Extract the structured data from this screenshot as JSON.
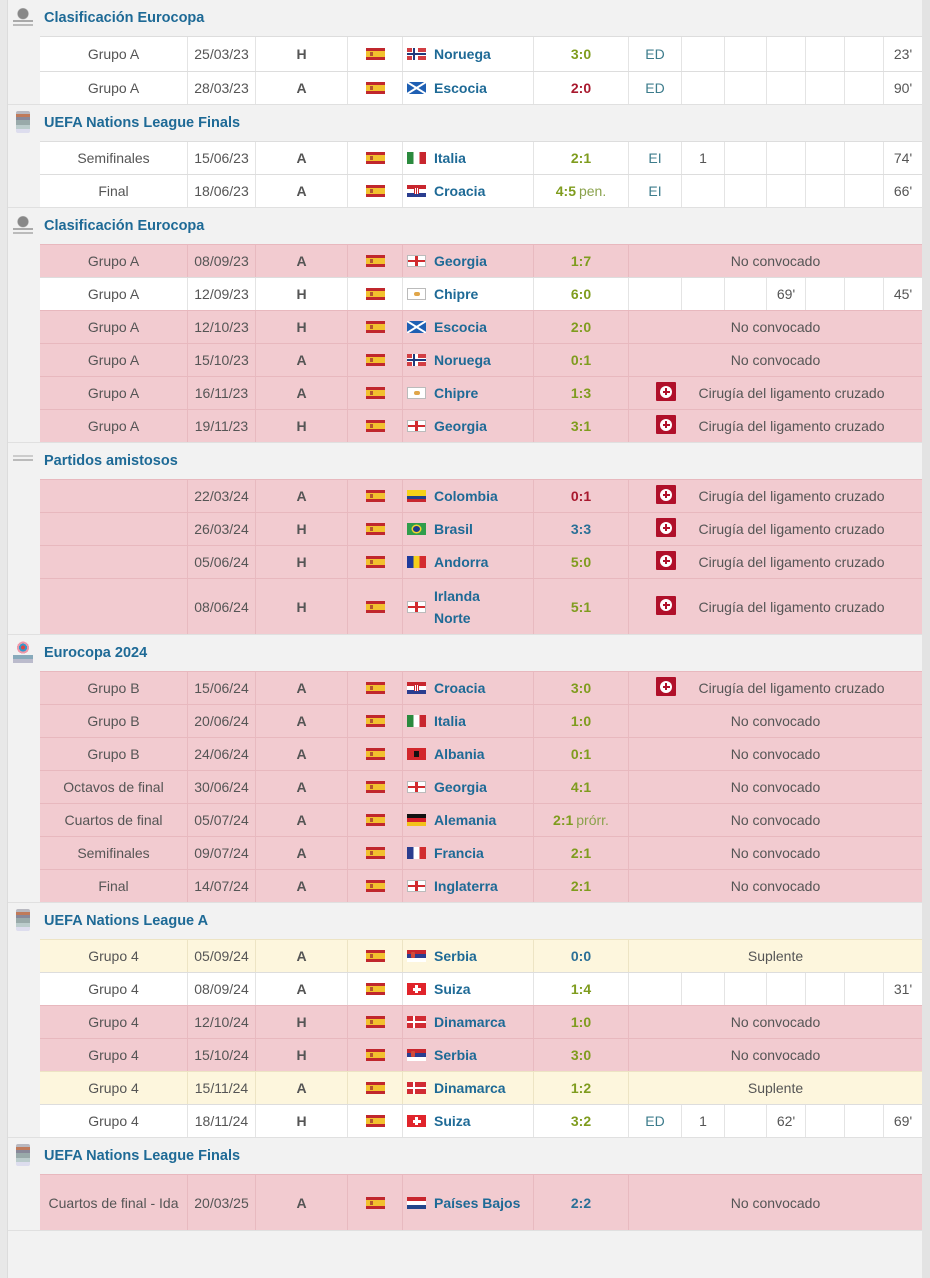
{
  "sections": [
    {
      "title": "Clasificación Eurocopa",
      "icon": "euro-qualifiers-logo-icon",
      "rows": [
        {
          "type": "played",
          "comp": "Grupo A",
          "date": "25/03/23",
          "ha": "H",
          "own_flag": "spain",
          "opp_flag": "norway",
          "opponent": "Noruega",
          "score": "3:0",
          "result": "win",
          "suffix": "",
          "stats": [
            "ED",
            "",
            "",
            "",
            "",
            "",
            "23'"
          ]
        },
        {
          "type": "played",
          "comp": "Grupo A",
          "date": "28/03/23",
          "ha": "A",
          "own_flag": "spain",
          "opp_flag": "scotland",
          "opponent": "Escocia",
          "score": "2:0",
          "result": "loss",
          "suffix": "",
          "stats": [
            "ED",
            "",
            "",
            "",
            "",
            "",
            "90'"
          ]
        }
      ]
    },
    {
      "title": "UEFA Nations League Finals",
      "icon": "nations-league-logo-icon",
      "rows": [
        {
          "type": "played",
          "comp": "Semifinales",
          "date": "15/06/23",
          "ha": "A",
          "own_flag": "spain",
          "opp_flag": "italy",
          "opponent": "Italia",
          "score": "2:1",
          "result": "win",
          "suffix": "",
          "stats": [
            "EI",
            "1",
            "",
            "",
            "",
            "",
            "74'"
          ]
        },
        {
          "type": "played",
          "comp": "Final",
          "date": "18/06/23",
          "ha": "A",
          "own_flag": "spain",
          "opp_flag": "croatia",
          "opponent": "Croacia",
          "score": "4:5",
          "result": "win",
          "suffix": "pen.",
          "stats": [
            "EI",
            "",
            "",
            "",
            "",
            "",
            "66'"
          ]
        }
      ]
    },
    {
      "title": "Clasificación Eurocopa",
      "icon": "euro-qualifiers-logo-icon",
      "rows": [
        {
          "type": "nc",
          "comp": "Grupo A",
          "date": "08/09/23",
          "ha": "A",
          "own_flag": "spain",
          "opp_flag": "georgia",
          "opponent": "Georgia",
          "score": "1:7",
          "result": "win",
          "suffix": "",
          "status": "No convocado",
          "injury": false
        },
        {
          "type": "played",
          "comp": "Grupo A",
          "date": "12/09/23",
          "ha": "H",
          "own_flag": "spain",
          "opp_flag": "cyprus",
          "opponent": "Chipre",
          "score": "6:0",
          "result": "win",
          "suffix": "",
          "stats": [
            "",
            "",
            "",
            "69'",
            "",
            "",
            "45'"
          ]
        },
        {
          "type": "nc",
          "comp": "Grupo A",
          "date": "12/10/23",
          "ha": "H",
          "own_flag": "spain",
          "opp_flag": "scotland",
          "opponent": "Escocia",
          "score": "2:0",
          "result": "win",
          "suffix": "",
          "status": "No convocado",
          "injury": false
        },
        {
          "type": "nc",
          "comp": "Grupo A",
          "date": "15/10/23",
          "ha": "A",
          "own_flag": "spain",
          "opp_flag": "norway",
          "opponent": "Noruega",
          "score": "0:1",
          "result": "win",
          "suffix": "",
          "status": "No convocado",
          "injury": false
        },
        {
          "type": "nc",
          "comp": "Grupo A",
          "date": "16/11/23",
          "ha": "A",
          "own_flag": "spain",
          "opp_flag": "cyprus",
          "opponent": "Chipre",
          "score": "1:3",
          "result": "win",
          "suffix": "",
          "status": "Cirugía del ligamento cruzado",
          "injury": true
        },
        {
          "type": "nc",
          "comp": "Grupo A",
          "date": "19/11/23",
          "ha": "H",
          "own_flag": "spain",
          "opp_flag": "georgia",
          "opponent": "Georgia",
          "score": "3:1",
          "result": "win",
          "suffix": "",
          "status": "Cirugía del ligamento cruzado",
          "injury": true
        }
      ]
    },
    {
      "title": "Partidos amistosos",
      "icon": "friendly-handshake-icon",
      "rows": [
        {
          "type": "nc",
          "comp": "",
          "date": "22/03/24",
          "ha": "A",
          "own_flag": "spain",
          "opp_flag": "colombia",
          "opponent": "Colombia",
          "score": "0:1",
          "result": "loss",
          "suffix": "",
          "status": "Cirugía del ligamento cruzado",
          "injury": true
        },
        {
          "type": "nc",
          "comp": "",
          "date": "26/03/24",
          "ha": "H",
          "own_flag": "spain",
          "opp_flag": "brazil",
          "opponent": "Brasil",
          "score": "3:3",
          "result": "draw",
          "suffix": "",
          "status": "Cirugía del ligamento cruzado",
          "injury": true
        },
        {
          "type": "nc",
          "comp": "",
          "date": "05/06/24",
          "ha": "H",
          "own_flag": "spain",
          "opp_flag": "andorra",
          "opponent": "Andorra",
          "score": "5:0",
          "result": "win",
          "suffix": "",
          "status": "Cirugía del ligamento cruzado",
          "injury": true
        },
        {
          "type": "nc",
          "comp": "",
          "date": "08/06/24",
          "ha": "H",
          "own_flag": "spain",
          "opp_flag": "ni",
          "opponent": "Irlanda Norte",
          "score": "5:1",
          "result": "win",
          "suffix": "",
          "status": "Cirugía del ligamento cruzado",
          "injury": true,
          "tall": true
        }
      ]
    },
    {
      "title": "Eurocopa 2024",
      "icon": "euro-2024-logo-icon",
      "rows": [
        {
          "type": "nc",
          "comp": "Grupo B",
          "date": "15/06/24",
          "ha": "A",
          "own_flag": "spain",
          "opp_flag": "croatia",
          "opponent": "Croacia",
          "score": "3:0",
          "result": "win",
          "suffix": "",
          "status": "Cirugía del ligamento cruzado",
          "injury": true
        },
        {
          "type": "nc",
          "comp": "Grupo B",
          "date": "20/06/24",
          "ha": "A",
          "own_flag": "spain",
          "opp_flag": "italy",
          "opponent": "Italia",
          "score": "1:0",
          "result": "win",
          "suffix": "",
          "status": "No convocado",
          "injury": false
        },
        {
          "type": "nc",
          "comp": "Grupo B",
          "date": "24/06/24",
          "ha": "A",
          "own_flag": "spain",
          "opp_flag": "albania",
          "opponent": "Albania",
          "score": "0:1",
          "result": "win",
          "suffix": "",
          "status": "No convocado",
          "injury": false
        },
        {
          "type": "nc",
          "comp": "Octavos de final",
          "date": "30/06/24",
          "ha": "A",
          "own_flag": "spain",
          "opp_flag": "georgia",
          "opponent": "Georgia",
          "score": "4:1",
          "result": "win",
          "suffix": "",
          "status": "No convocado",
          "injury": false
        },
        {
          "type": "nc",
          "comp": "Cuartos de final",
          "date": "05/07/24",
          "ha": "A",
          "own_flag": "spain",
          "opp_flag": "germany",
          "opponent": "Alemania",
          "score": "2:1",
          "result": "win",
          "suffix": "prórr.",
          "status": "No convocado",
          "injury": false
        },
        {
          "type": "nc",
          "comp": "Semifinales",
          "date": "09/07/24",
          "ha": "A",
          "own_flag": "spain",
          "opp_flag": "france",
          "opponent": "Francia",
          "score": "2:1",
          "result": "win",
          "suffix": "",
          "status": "No convocado",
          "injury": false
        },
        {
          "type": "nc",
          "comp": "Final",
          "date": "14/07/24",
          "ha": "A",
          "own_flag": "spain",
          "opp_flag": "england",
          "opponent": "Inglaterra",
          "score": "2:1",
          "result": "win",
          "suffix": "",
          "status": "No convocado",
          "injury": false
        }
      ]
    },
    {
      "title": "UEFA Nations League A",
      "icon": "nations-league-logo-icon",
      "rows": [
        {
          "type": "sub",
          "comp": "Grupo 4",
          "date": "05/09/24",
          "ha": "A",
          "own_flag": "spain",
          "opp_flag": "serbia",
          "opponent": "Serbia",
          "score": "0:0",
          "result": "draw",
          "suffix": "",
          "status": "Suplente",
          "injury": false
        },
        {
          "type": "played",
          "comp": "Grupo 4",
          "date": "08/09/24",
          "ha": "A",
          "own_flag": "spain",
          "opp_flag": "switzerland",
          "opponent": "Suiza",
          "score": "1:4",
          "result": "win",
          "suffix": "",
          "stats": [
            "",
            "",
            "",
            "",
            "",
            "",
            "31'"
          ]
        },
        {
          "type": "nc",
          "comp": "Grupo 4",
          "date": "12/10/24",
          "ha": "H",
          "own_flag": "spain",
          "opp_flag": "denmark",
          "opponent": "Dinamarca",
          "score": "1:0",
          "result": "win",
          "suffix": "",
          "status": "No convocado",
          "injury": false
        },
        {
          "type": "nc",
          "comp": "Grupo 4",
          "date": "15/10/24",
          "ha": "H",
          "own_flag": "spain",
          "opp_flag": "serbia",
          "opponent": "Serbia",
          "score": "3:0",
          "result": "win",
          "suffix": "",
          "status": "No convocado",
          "injury": false
        },
        {
          "type": "sub",
          "comp": "Grupo 4",
          "date": "15/11/24",
          "ha": "A",
          "own_flag": "spain",
          "opp_flag": "denmark",
          "opponent": "Dinamarca",
          "score": "1:2",
          "result": "win",
          "suffix": "",
          "status": "Suplente",
          "injury": false
        },
        {
          "type": "played",
          "comp": "Grupo 4",
          "date": "18/11/24",
          "ha": "H",
          "own_flag": "spain",
          "opp_flag": "switzerland",
          "opponent": "Suiza",
          "score": "3:2",
          "result": "win",
          "suffix": "",
          "stats": [
            "ED",
            "1",
            "",
            "62'",
            "",
            "",
            "69'"
          ]
        }
      ]
    },
    {
      "title": "UEFA Nations League Finals",
      "icon": "nations-league-logo-icon",
      "rows": [
        {
          "type": "nc",
          "comp": "Cuartos de final - Ida",
          "date": "20/03/25",
          "ha": "A",
          "own_flag": "spain",
          "opp_flag": "netherlands",
          "opponent": "Países Bajos",
          "score": "2:2",
          "result": "draw",
          "suffix": "",
          "status": "No convocado",
          "injury": false,
          "tall": true
        }
      ]
    }
  ],
  "colors": {
    "link_blue": "#1e6a96",
    "win_green": "#7f9c1e",
    "loss_red": "#a8192e",
    "draw_blue": "#2a6f96",
    "not_called_bg": "#f2cbd0",
    "substitute_bg": "#fdf6dd",
    "injury_red": "#b0102a"
  }
}
